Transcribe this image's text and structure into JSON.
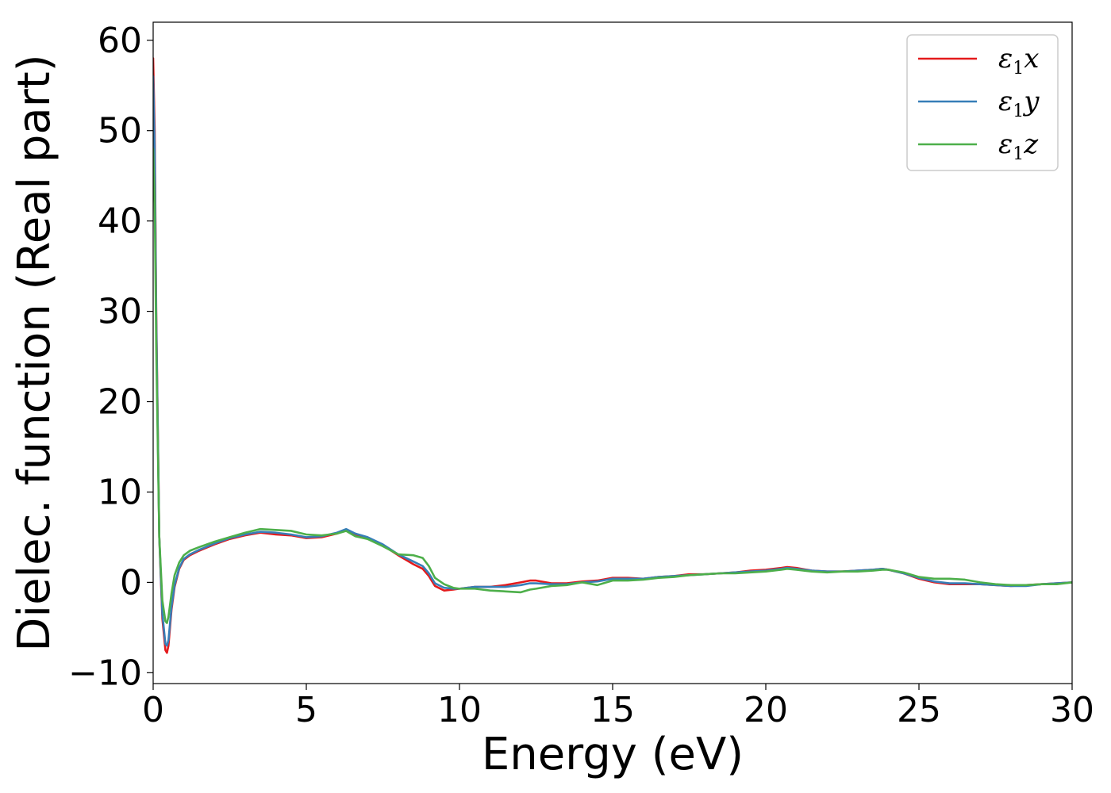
{
  "chart_data": {
    "type": "line",
    "xlabel": "Energy (eV)",
    "ylabel": "Dielec. function (Real part)",
    "xlim": [
      0,
      30
    ],
    "ylim": [
      -11.2,
      62
    ],
    "xticks": [
      0,
      5,
      10,
      15,
      20,
      25,
      30
    ],
    "xtick_labels": [
      "0",
      "5",
      "10",
      "15",
      "20",
      "25",
      "30"
    ],
    "yticks": [
      -10,
      0,
      10,
      20,
      30,
      40,
      50,
      60
    ],
    "ytick_labels": [
      "−10",
      "0",
      "10",
      "20",
      "30",
      "40",
      "50",
      "60"
    ],
    "grid": false,
    "legend_position": "top-right",
    "series": [
      {
        "name": "ε₁x",
        "legend_main": "ε",
        "legend_sub": "1",
        "legend_var": "x",
        "color": "#e41a1c",
        "x": [
          0,
          0.05,
          0.1,
          0.2,
          0.3,
          0.4,
          0.45,
          0.5,
          0.6,
          0.7,
          0.85,
          1.0,
          1.2,
          1.5,
          2,
          2.5,
          3,
          3.5,
          4,
          4.5,
          5,
          5.5,
          6,
          6.3,
          6.6,
          7,
          7.5,
          8,
          8.5,
          8.8,
          9.0,
          9.2,
          9.5,
          9.8,
          10,
          10.5,
          11,
          11.5,
          12,
          12.3,
          12.5,
          13,
          13.5,
          14,
          14.5,
          15,
          15.5,
          16,
          16.5,
          17,
          17.5,
          18,
          18.5,
          19,
          19.5,
          20,
          20.5,
          20.7,
          21,
          21.5,
          22,
          22.5,
          23,
          23.5,
          23.8,
          24,
          24.5,
          25,
          25.5,
          26,
          26.5,
          27,
          27.5,
          28,
          28.5,
          29,
          29.5,
          30
        ],
        "values": [
          58,
          50,
          30,
          5,
          -4,
          -7.5,
          -7.8,
          -7,
          -3,
          -0.5,
          1.5,
          2.5,
          3.0,
          3.5,
          4.2,
          4.8,
          5.2,
          5.5,
          5.3,
          5.2,
          4.9,
          5.0,
          5.4,
          5.8,
          5.3,
          4.9,
          4.1,
          3.0,
          2.0,
          1.5,
          0.7,
          -0.4,
          -0.9,
          -0.8,
          -0.7,
          -0.5,
          -0.5,
          -0.3,
          0.0,
          0.2,
          0.2,
          -0.1,
          -0.1,
          0.1,
          0.2,
          0.5,
          0.5,
          0.4,
          0.6,
          0.7,
          0.9,
          0.9,
          1.0,
          1.1,
          1.3,
          1.4,
          1.6,
          1.7,
          1.6,
          1.3,
          1.2,
          1.2,
          1.3,
          1.4,
          1.5,
          1.4,
          1.0,
          0.4,
          0.0,
          -0.2,
          -0.2,
          -0.2,
          -0.3,
          -0.4,
          -0.3,
          -0.2,
          -0.1,
          0.0
        ]
      },
      {
        "name": "ε₁y",
        "legend_main": "ε",
        "legend_sub": "1",
        "legend_var": "y",
        "color": "#377eb8",
        "x": [
          0,
          0.05,
          0.1,
          0.2,
          0.3,
          0.4,
          0.45,
          0.5,
          0.6,
          0.7,
          0.85,
          1.0,
          1.2,
          1.5,
          2,
          2.5,
          3,
          3.5,
          4,
          4.5,
          5,
          5.5,
          6,
          6.3,
          6.6,
          7,
          7.5,
          8,
          8.5,
          8.8,
          9.0,
          9.2,
          9.5,
          9.8,
          10,
          10.5,
          11,
          11.5,
          12,
          12.3,
          12.5,
          13,
          13.5,
          14,
          14.5,
          15,
          15.5,
          16,
          16.5,
          17,
          17.5,
          18,
          18.5,
          19,
          19.5,
          20,
          20.5,
          20.7,
          21,
          21.5,
          22,
          22.5,
          23,
          23.5,
          23.8,
          24,
          24.5,
          25,
          25.5,
          26,
          26.5,
          27,
          27.5,
          28,
          28.5,
          29,
          29.5,
          30
        ],
        "values": [
          56,
          48,
          29,
          5,
          -3.5,
          -6.8,
          -7.0,
          -6.4,
          -2.7,
          -0.3,
          1.6,
          2.6,
          3.1,
          3.6,
          4.3,
          4.9,
          5.3,
          5.6,
          5.5,
          5.3,
          5.0,
          5.1,
          5.5,
          5.9,
          5.4,
          5.0,
          4.2,
          3.1,
          2.3,
          1.8,
          1.0,
          -0.1,
          -0.6,
          -0.7,
          -0.7,
          -0.5,
          -0.5,
          -0.5,
          -0.3,
          -0.1,
          -0.1,
          -0.2,
          -0.2,
          0.0,
          0.1,
          0.4,
          0.4,
          0.4,
          0.6,
          0.7,
          0.8,
          0.9,
          1.0,
          1.1,
          1.2,
          1.3,
          1.5,
          1.6,
          1.5,
          1.3,
          1.2,
          1.2,
          1.3,
          1.4,
          1.5,
          1.4,
          1.0,
          0.5,
          0.1,
          -0.1,
          -0.1,
          -0.2,
          -0.3,
          -0.4,
          -0.4,
          -0.2,
          -0.1,
          0.0
        ]
      },
      {
        "name": "ε₁z",
        "legend_main": "ε",
        "legend_sub": "1",
        "legend_var": "z",
        "color": "#4daf4a",
        "x": [
          0,
          0.05,
          0.1,
          0.2,
          0.3,
          0.4,
          0.45,
          0.5,
          0.6,
          0.7,
          0.85,
          1.0,
          1.2,
          1.5,
          2,
          2.5,
          3,
          3.5,
          4,
          4.5,
          5,
          5.5,
          6,
          6.3,
          6.6,
          7,
          7.5,
          8,
          8.5,
          8.8,
          9.0,
          9.2,
          9.5,
          9.8,
          10,
          10.5,
          11,
          11.5,
          12,
          12.3,
          12.5,
          13,
          13.5,
          14,
          14.5,
          15,
          15.5,
          16,
          16.5,
          17,
          17.5,
          18,
          18.5,
          19,
          19.5,
          20,
          20.5,
          20.7,
          21,
          21.5,
          22,
          22.5,
          23,
          23.5,
          23.8,
          24,
          24.5,
          25,
          25.5,
          26,
          26.5,
          27,
          27.5,
          28,
          28.5,
          29,
          29.5,
          30
        ],
        "values": [
          48,
          42,
          26,
          5,
          -2,
          -4.3,
          -4.5,
          -3.8,
          -1.2,
          0.8,
          2.2,
          3.0,
          3.5,
          3.9,
          4.5,
          5.0,
          5.5,
          5.9,
          5.8,
          5.7,
          5.3,
          5.2,
          5.4,
          5.7,
          5.1,
          4.8,
          4.0,
          3.1,
          3.0,
          2.7,
          1.8,
          0.5,
          -0.2,
          -0.6,
          -0.7,
          -0.7,
          -0.9,
          -1.0,
          -1.1,
          -0.8,
          -0.7,
          -0.4,
          -0.3,
          0.0,
          -0.3,
          0.2,
          0.2,
          0.3,
          0.5,
          0.6,
          0.8,
          0.9,
          1.0,
          1.0,
          1.1,
          1.2,
          1.4,
          1.5,
          1.4,
          1.2,
          1.1,
          1.2,
          1.2,
          1.3,
          1.4,
          1.4,
          1.1,
          0.6,
          0.4,
          0.4,
          0.3,
          0.0,
          -0.2,
          -0.3,
          -0.3,
          -0.2,
          -0.2,
          0.0
        ]
      }
    ]
  }
}
